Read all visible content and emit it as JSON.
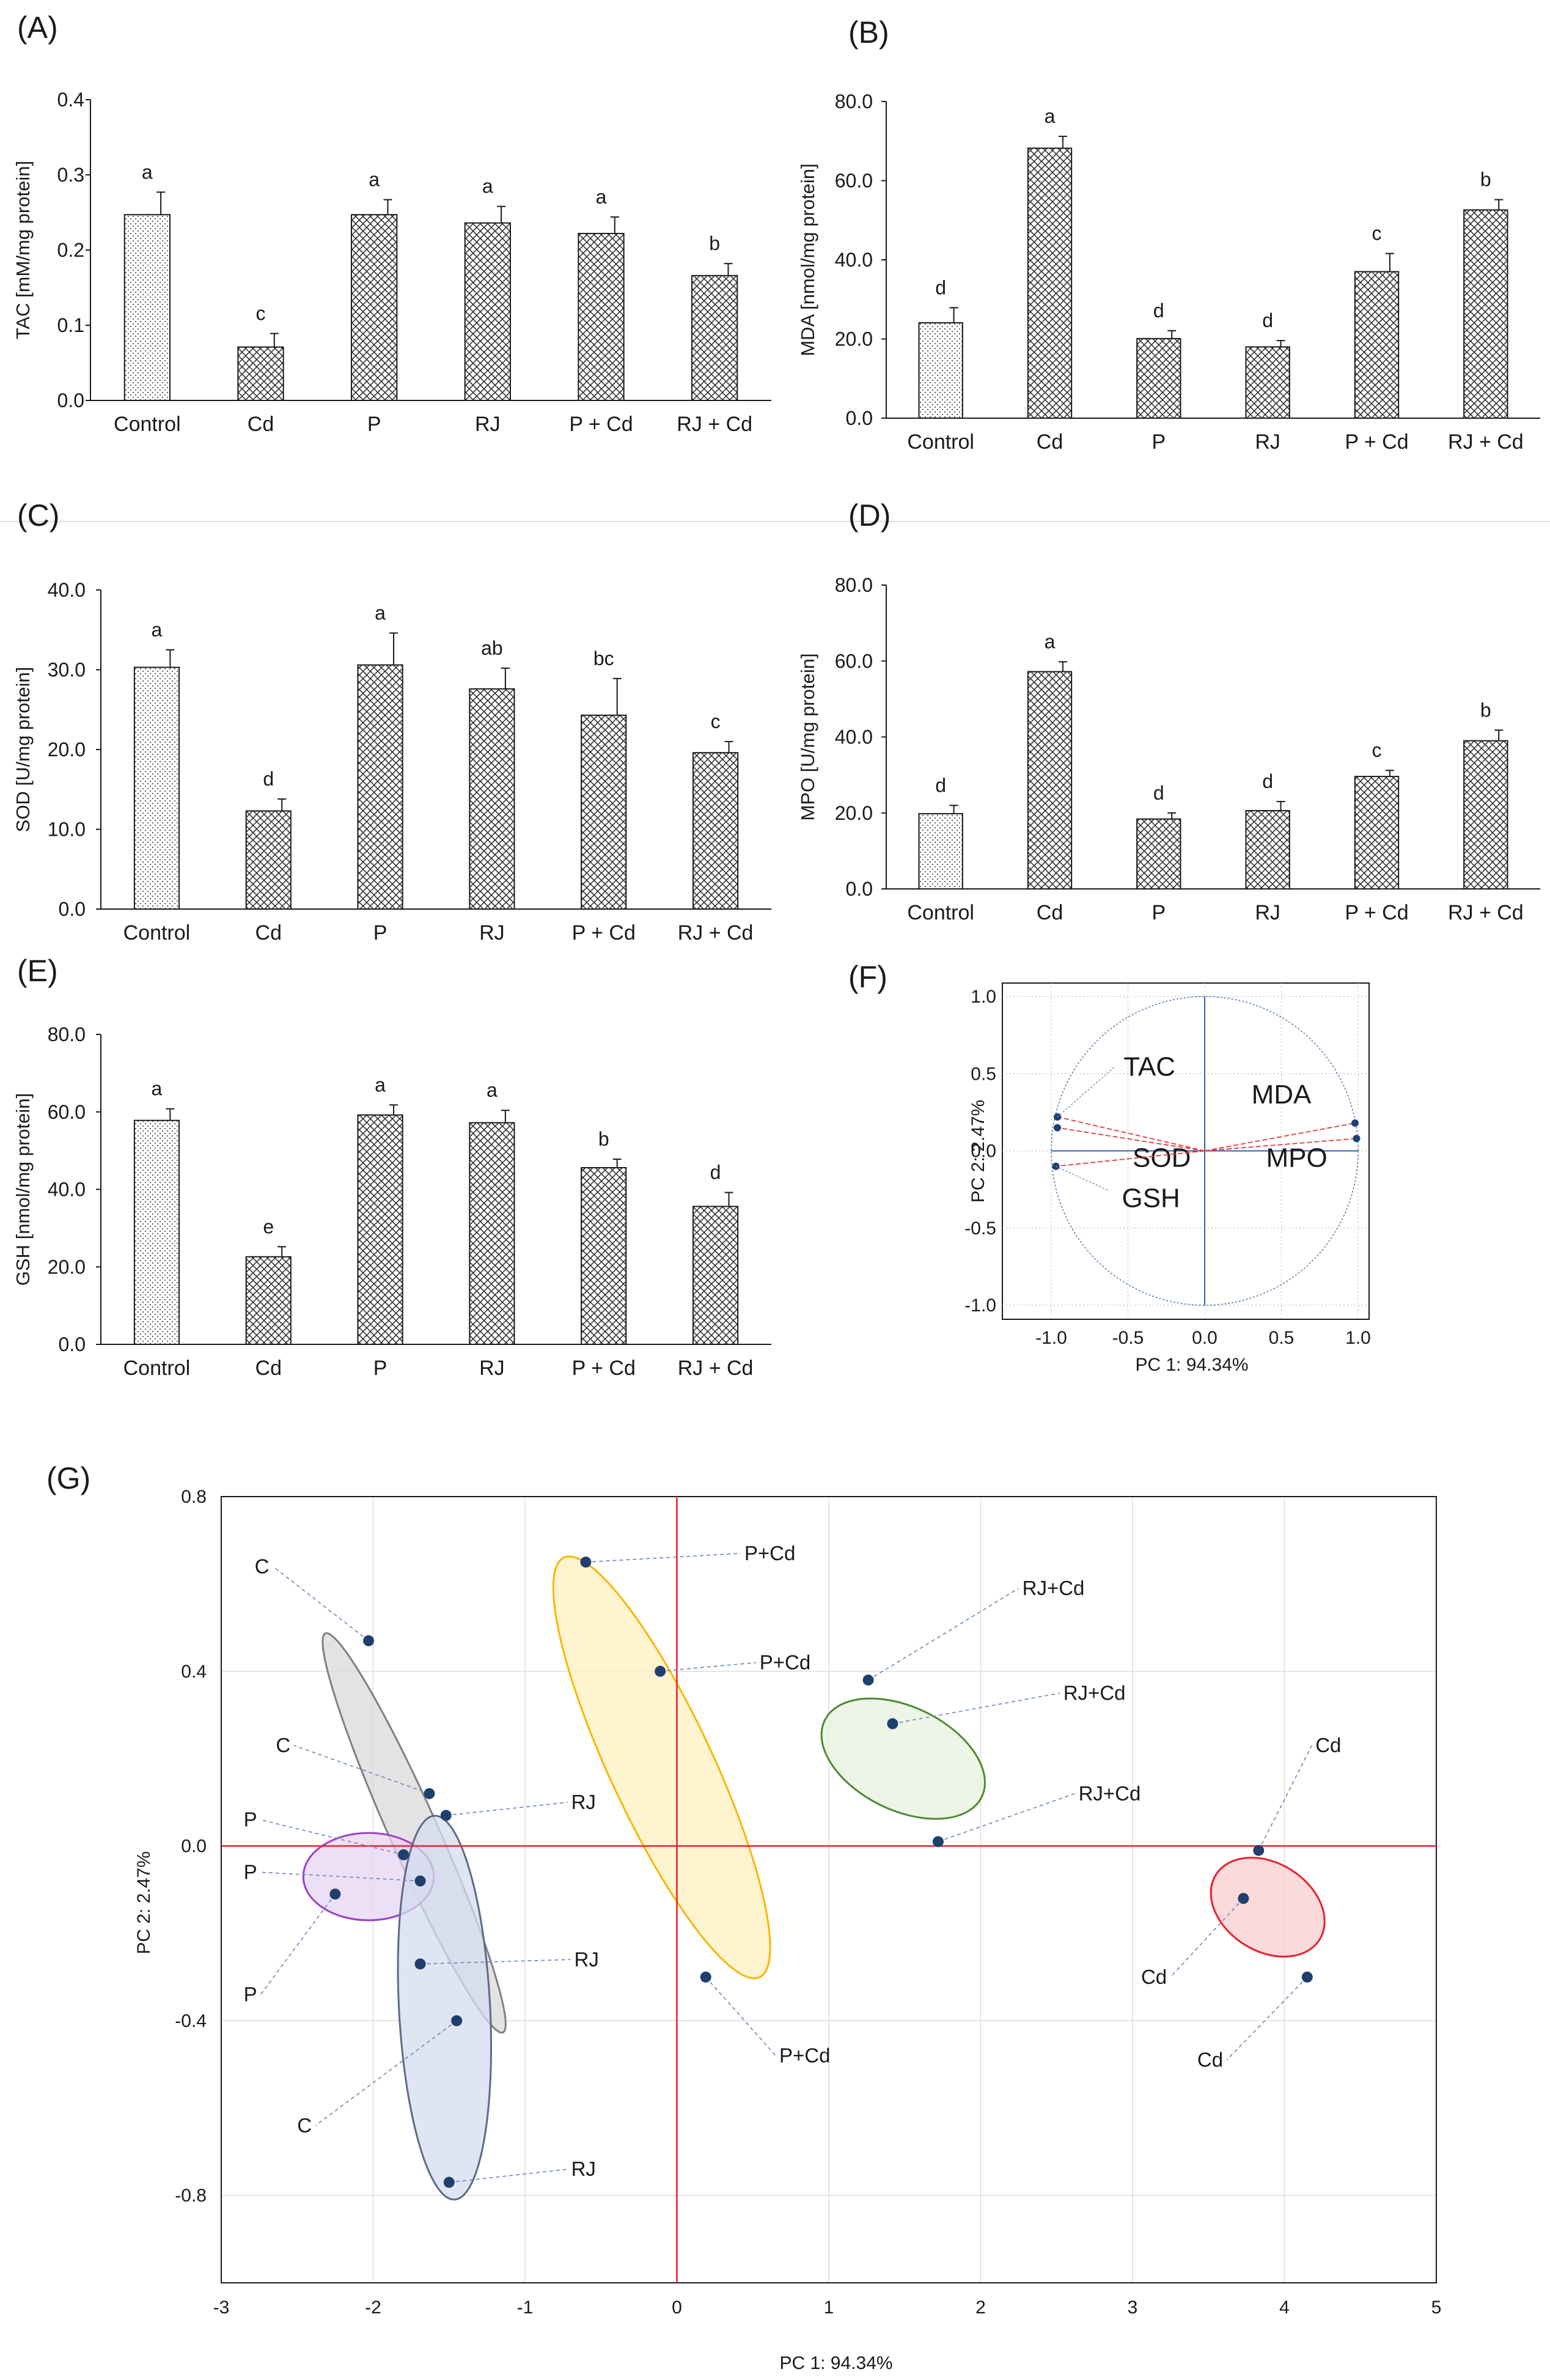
{
  "panel_labels": [
    "(A)",
    "(B)",
    "(C)",
    "(D)",
    "(E)",
    "(F)",
    "(G)"
  ],
  "chart_data": [
    {
      "panel": "(A)",
      "type": "bar",
      "categories": [
        "Control",
        "Cd",
        "P",
        "RJ",
        "P + Cd",
        "RJ + Cd"
      ],
      "values": [
        0.247,
        0.071,
        0.247,
        0.236,
        0.222,
        0.166
      ],
      "errors": [
        0.03,
        0.018,
        0.02,
        0.022,
        0.022,
        0.016
      ],
      "letters": [
        "a",
        "c",
        "a",
        "a",
        "a",
        "b"
      ],
      "ylabel": "TAC  [mM/mg protein]",
      "ylim": [
        0,
        0.4
      ],
      "yticks": [
        "0.0",
        "0.1",
        "0.2",
        "0.3",
        "0.4"
      ]
    },
    {
      "panel": "(B)",
      "type": "bar",
      "categories": [
        "Control",
        "Cd",
        "P",
        "RJ",
        "P + Cd",
        "RJ + Cd"
      ],
      "values": [
        24.1,
        68.2,
        20.1,
        18.0,
        37.0,
        52.6
      ],
      "errors": [
        3.8,
        3.0,
        2.0,
        1.6,
        4.6,
        2.6
      ],
      "letters": [
        "d",
        "a",
        "d",
        "d",
        "c",
        "b"
      ],
      "ylabel": "MDA  [nmol/mg protein]",
      "ylim": [
        0,
        80
      ],
      "yticks": [
        "0.0",
        "20.0",
        "40.0",
        "60.0",
        "80.0"
      ]
    },
    {
      "panel": "(C)",
      "type": "bar",
      "categories": [
        "Control",
        "Cd",
        "P",
        "RJ",
        "P + Cd",
        "RJ + Cd"
      ],
      "values": [
        30.3,
        12.3,
        30.6,
        27.6,
        24.3,
        19.6
      ],
      "errors": [
        2.2,
        1.5,
        4.0,
        2.6,
        4.6,
        1.4
      ],
      "letters": [
        "a",
        "d",
        "a",
        "ab",
        "bc",
        "c"
      ],
      "ylabel": "SOD   [U/mg protein]",
      "ylim": [
        0,
        40
      ],
      "yticks": [
        "0.0",
        "10.0",
        "20.0",
        "30.0",
        "40.0"
      ]
    },
    {
      "panel": "(D)",
      "type": "bar",
      "categories": [
        "Control",
        "Cd",
        "P",
        "RJ",
        "P + Cd",
        "RJ + Cd"
      ],
      "values": [
        19.8,
        57.2,
        18.4,
        20.6,
        29.6,
        39.0
      ],
      "errors": [
        2.2,
        2.6,
        1.6,
        2.4,
        1.6,
        2.8
      ],
      "letters": [
        "d",
        "a",
        "d",
        "d",
        "c",
        "b"
      ],
      "ylabel": "MPO  [U/mg protein]",
      "ylim": [
        0,
        80
      ],
      "yticks": [
        "0.0",
        "20.0",
        "40.0",
        "60.0",
        "80.0"
      ]
    },
    {
      "panel": "(E)",
      "type": "bar",
      "categories": [
        "Control",
        "Cd",
        "P",
        "RJ",
        "P + Cd",
        "RJ + Cd"
      ],
      "values": [
        57.8,
        22.6,
        59.2,
        57.2,
        45.6,
        35.6
      ],
      "errors": [
        3.0,
        2.6,
        2.6,
        3.2,
        2.2,
        3.6
      ],
      "letters": [
        "a",
        "e",
        "a",
        "a",
        "b",
        "d"
      ],
      "ylabel": "GSH  [nmol/mg protein]",
      "ylim": [
        0,
        80
      ],
      "yticks": [
        "0.0",
        "20.0",
        "40.0",
        "60.0",
        "80.0"
      ]
    },
    {
      "panel": "(F)",
      "type": "scatter",
      "subtype": "PCA loading plot (correlation circle)",
      "xlabel": "PC 1: 94.34%",
      "ylabel": "PC 2:  2.47%",
      "xlim": [
        -1.0,
        1.0
      ],
      "ylim": [
        -1.0,
        1.0
      ],
      "xticks": [
        "-1.0",
        "-0.5",
        "0.0",
        "0.5",
        "1.0"
      ],
      "yticks": [
        "1.0",
        "0.5",
        "0.0",
        "-0.5",
        "-1.0"
      ],
      "variables": [
        {
          "name": "TAC",
          "x": -0.96,
          "y": 0.22
        },
        {
          "name": "SOD",
          "x": -0.96,
          "y": 0.15
        },
        {
          "name": "GSH",
          "x": -0.97,
          "y": -0.1
        },
        {
          "name": "MDA",
          "x": 0.98,
          "y": 0.18
        },
        {
          "name": "MPO",
          "x": 0.99,
          "y": 0.08
        }
      ]
    },
    {
      "panel": "(G)",
      "type": "scatter",
      "subtype": "PCA score plot",
      "xlabel": "PC 1: 94.34%",
      "ylabel": "PC 2:  2.47%",
      "xlim": [
        -3,
        5
      ],
      "ylim": [
        -1.0,
        0.8
      ],
      "xticks": [
        "-3",
        "-2",
        "-1",
        "0",
        "1",
        "2",
        "3",
        "4",
        "5"
      ],
      "yticks": [
        "0.8",
        "0.4",
        "0.0",
        "-0.4",
        "-0.8"
      ],
      "groups": [
        {
          "name": "C",
          "color": "#d9d9d9",
          "edge": "#808080",
          "points": [
            {
              "x": -2.03,
              "y": 0.47
            },
            {
              "x": -1.63,
              "y": 0.12
            },
            {
              "x": -1.45,
              "y": -0.4
            }
          ]
        },
        {
          "name": "P",
          "color": "#e6d6f3",
          "edge": "#9b40c8",
          "points": [
            {
              "x": -1.8,
              "y": -0.02
            },
            {
              "x": -1.69,
              "y": -0.08
            },
            {
              "x": -2.25,
              "y": -0.11
            }
          ]
        },
        {
          "name": "RJ",
          "color": "#d4dcee",
          "edge": "#5a6a8a",
          "points": [
            {
              "x": -1.52,
              "y": 0.07
            },
            {
              "x": -1.69,
              "y": -0.27
            },
            {
              "x": -1.5,
              "y": -0.77
            }
          ]
        },
        {
          "name": "P+Cd",
          "color": "#fff0c0",
          "edge": "#f5b800",
          "points": [
            {
              "x": -0.6,
              "y": 0.65
            },
            {
              "x": -0.11,
              "y": 0.4
            },
            {
              "x": 0.19,
              "y": -0.3
            }
          ]
        },
        {
          "name": "RJ+Cd",
          "color": "#e6f1de",
          "edge": "#4e8a30",
          "points": [
            {
              "x": 1.26,
              "y": 0.38
            },
            {
              "x": 1.42,
              "y": 0.28
            },
            {
              "x": 1.72,
              "y": 0.01
            }
          ]
        },
        {
          "name": "Cd",
          "color": "#f9cdd0",
          "edge": "#e8202e",
          "points": [
            {
              "x": 3.83,
              "y": -0.01
            },
            {
              "x": 3.73,
              "y": -0.12
            },
            {
              "x": 4.15,
              "y": -0.3
            }
          ]
        }
      ]
    }
  ]
}
